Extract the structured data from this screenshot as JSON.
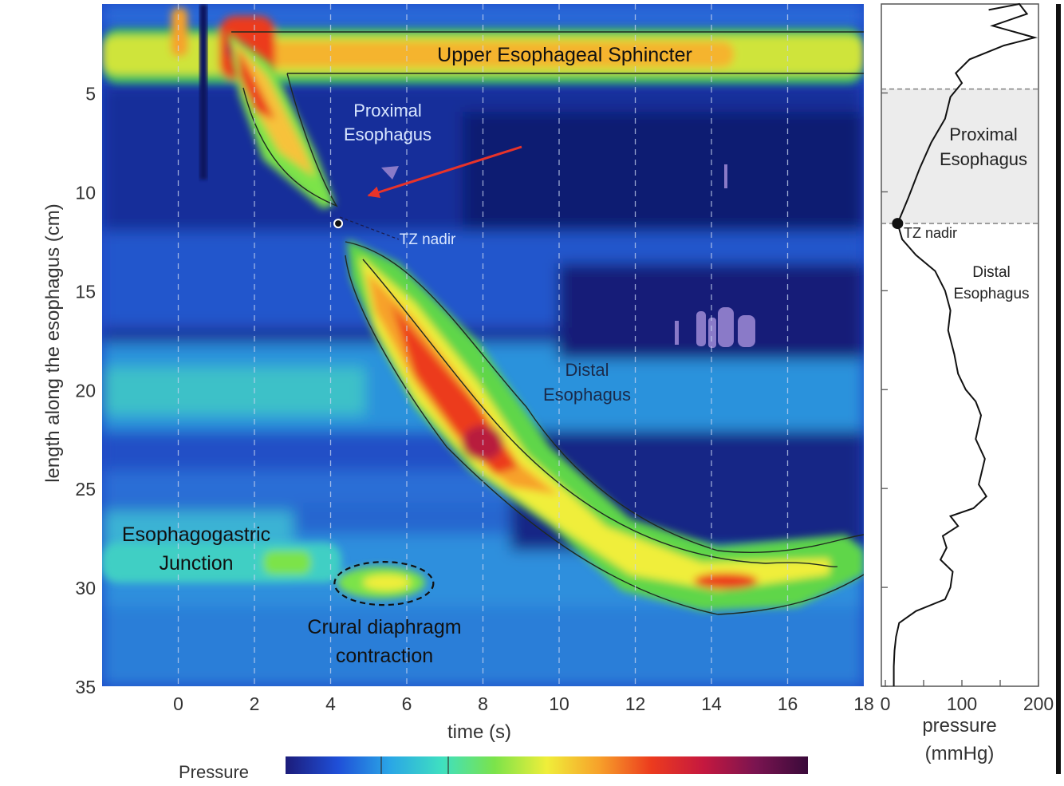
{
  "chart_data": [
    {
      "type": "heatmap",
      "title": "",
      "xlabel": "time (s)",
      "ylabel": "length along the esophagus (cm)",
      "xlim": [
        -2,
        18
      ],
      "ylim": [
        35,
        0.5
      ],
      "x_ticks": [
        0,
        2,
        4,
        6,
        8,
        10,
        12,
        14,
        16,
        18
      ],
      "y_ticks": [
        5,
        10,
        15,
        20,
        25,
        30,
        35
      ],
      "grid_x_dashed": [
        0,
        2,
        4,
        6,
        8,
        10,
        12,
        14,
        16
      ],
      "colorbar": {
        "label": "Pressure",
        "colors": [
          "#1c1c7a",
          "#1f4fd8",
          "#2aa6e6",
          "#3fe0c0",
          "#7be34a",
          "#f0ee3a",
          "#f7a12a",
          "#ec3b1e",
          "#c5183f",
          "#7a1450",
          "#3a0a3a"
        ]
      },
      "annotations": [
        {
          "id": "ues",
          "text": "Upper Esophageal Sphincter",
          "x": 10.2,
          "y": 3.2
        },
        {
          "id": "prox",
          "text": "Proximal\nEsophagus",
          "x": 5.5,
          "y": 7.5
        },
        {
          "id": "tz",
          "text": "TZ nadir",
          "x": 6.5,
          "y": 12.3
        },
        {
          "id": "dist",
          "text": "Distal\nEsophagus",
          "x": 10.7,
          "y": 20.4
        },
        {
          "id": "egj",
          "text": "Esophagogastric\nJunction",
          "x": 0.5,
          "y": 28.3
        },
        {
          "id": "crural",
          "text": "Crural diaphragm\ncontraction",
          "x": 5.4,
          "y": 32.4
        }
      ],
      "tz_nadir_point": {
        "x": 4.2,
        "y": 11.6
      },
      "peristaltic_wave": {
        "t": [
          1.3,
          2.0,
          3.0,
          4.0,
          4.2,
          5.0,
          6.0,
          7.0,
          8.0,
          9.0,
          10.0,
          11.0,
          12.0,
          13.0,
          14.0,
          15.0,
          16.0,
          17.0,
          18.0
        ],
        "position_cm": [
          3.0,
          7.5,
          9.5,
          11.0,
          11.6,
          15.0,
          18.5,
          21.5,
          23.5,
          25.0,
          26.5,
          27.7,
          28.7,
          29.2,
          29.8,
          29.8,
          29.2,
          28.7,
          28.0
        ]
      },
      "crural_contraction": {
        "x": 5.4,
        "y": 29.8
      }
    },
    {
      "type": "line",
      "xlabel": "pressure\n(mmHg)",
      "ylabel": "",
      "xlim": [
        0,
        200
      ],
      "ylim": [
        35,
        0.5
      ],
      "x_ticks": [
        0,
        100,
        200
      ],
      "shaded_region_cm": [
        4.8,
        11.6
      ],
      "tz_nadir": {
        "pressure": 16,
        "position_cm": 11.6,
        "label": "TZ nadir"
      },
      "region_labels": [
        {
          "text": "Proximal\nEsophagus"
        },
        {
          "text": "Distal\nEsophagus"
        }
      ],
      "series": [
        {
          "pressure": [
            135,
            175,
            185,
            140,
            195,
            155,
            110,
            92,
            100,
            85,
            78,
            60,
            45,
            30,
            16,
            22,
            40,
            65,
            78,
            85,
            82,
            90,
            95,
            105,
            118,
            125,
            118,
            130,
            122,
            132,
            115,
            85,
            95,
            75,
            80,
            72,
            88,
            85,
            78,
            40,
            18,
            14,
            12,
            11,
            11
          ],
          "position_cm": [
            0.8,
            0.5,
            1.0,
            1.6,
            2.2,
            2.6,
            3.3,
            4.0,
            4.5,
            5.2,
            6.3,
            7.5,
            8.8,
            10.3,
            11.6,
            12.4,
            13.2,
            14.0,
            15.0,
            16.0,
            17.0,
            18.2,
            19.2,
            20.0,
            20.6,
            21.3,
            22.5,
            23.5,
            24.8,
            25.4,
            26.0,
            26.4,
            26.9,
            27.4,
            28.0,
            28.6,
            29.2,
            30.0,
            30.6,
            31.2,
            31.8,
            32.5,
            33.2,
            34.0,
            35.0
          ]
        }
      ]
    }
  ]
}
